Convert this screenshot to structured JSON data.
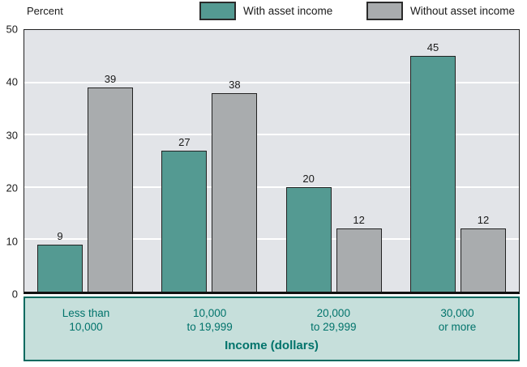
{
  "header": {
    "percent_label": "Percent"
  },
  "legend": [
    {
      "label": "With asset income",
      "color": "#549a92"
    },
    {
      "label": "Without asset income",
      "color": "#a9acae"
    }
  ],
  "colors": {
    "plot_background": "#e2e4e8",
    "gridline": "#ffffff",
    "band_background": "#c6dfdb",
    "band_border": "#00695f",
    "band_text": "#00736b",
    "bar_border": "#222222"
  },
  "chart_data": {
    "type": "bar",
    "title": "",
    "ylabel": "Percent",
    "xlabel": "Income (dollars)",
    "ylim": [
      0,
      50
    ],
    "yticks": [
      0,
      10,
      20,
      30,
      40,
      50
    ],
    "grid": true,
    "legend_position": "top",
    "categories": [
      [
        "Less than",
        "10,000"
      ],
      [
        "10,000",
        "to 19,999"
      ],
      [
        "20,000",
        "to 29,999"
      ],
      [
        "30,000",
        "or more"
      ]
    ],
    "series": [
      {
        "name": "With asset income",
        "color": "#549a92",
        "values": [
          9,
          27,
          20,
          45
        ]
      },
      {
        "name": "Without asset income",
        "color": "#a9acae",
        "values": [
          39,
          38,
          12,
          12
        ]
      }
    ]
  },
  "xaxis_band": {
    "title": "Income (dollars)"
  }
}
